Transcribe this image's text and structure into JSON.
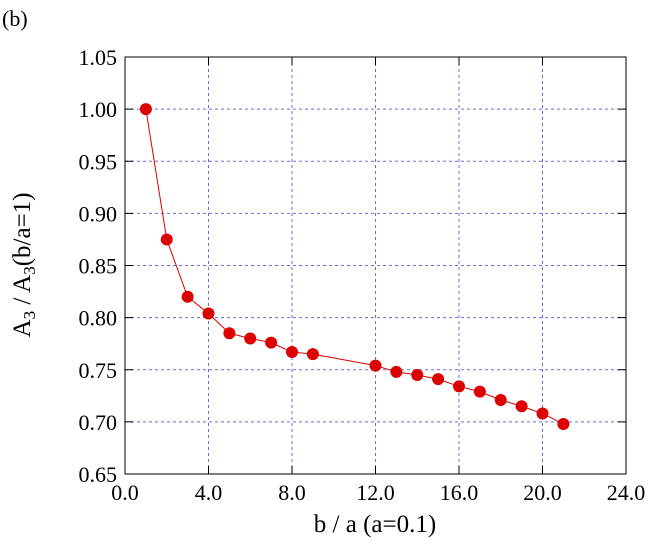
{
  "chart_data": {
    "type": "line",
    "panel_label": "(b)",
    "xlabel": "b / a (a=0.1)",
    "ylabel_parts": [
      "A",
      "3",
      " / A",
      "3",
      "(b/a=1)"
    ],
    "x": [
      1,
      2,
      3,
      4,
      5,
      6,
      7,
      8,
      9,
      12,
      13,
      14,
      15,
      16,
      17,
      18,
      19,
      20,
      21
    ],
    "series": [
      {
        "color": "#dd0000",
        "values": [
          1.0,
          0.875,
          0.82,
          0.804,
          0.785,
          0.78,
          0.776,
          0.767,
          0.765,
          0.754,
          0.748,
          0.745,
          0.741,
          0.734,
          0.729,
          0.721,
          0.715,
          0.708,
          0.698
        ]
      }
    ],
    "xlim": [
      0,
      24
    ],
    "ylim": [
      0.65,
      1.05
    ],
    "xticks": [
      {
        "value": 0,
        "label": "0.0"
      },
      {
        "value": 4,
        "label": "4.0"
      },
      {
        "value": 8,
        "label": "8.0"
      },
      {
        "value": 12,
        "label": "12.0"
      },
      {
        "value": 16,
        "label": "16.0"
      },
      {
        "value": 20,
        "label": "20.0"
      },
      {
        "value": 24,
        "label": "24.0"
      }
    ],
    "yticks": [
      0.65,
      {
        "value": 0.7,
        "label": "0.70"
      },
      0.75,
      {
        "value": 0.8,
        "label": "0.80"
      },
      0.85,
      {
        "value": 0.9,
        "label": "0.90"
      },
      0.95,
      {
        "value": 1.0,
        "label": "1.00"
      },
      1.05
    ],
    "grid": true
  }
}
